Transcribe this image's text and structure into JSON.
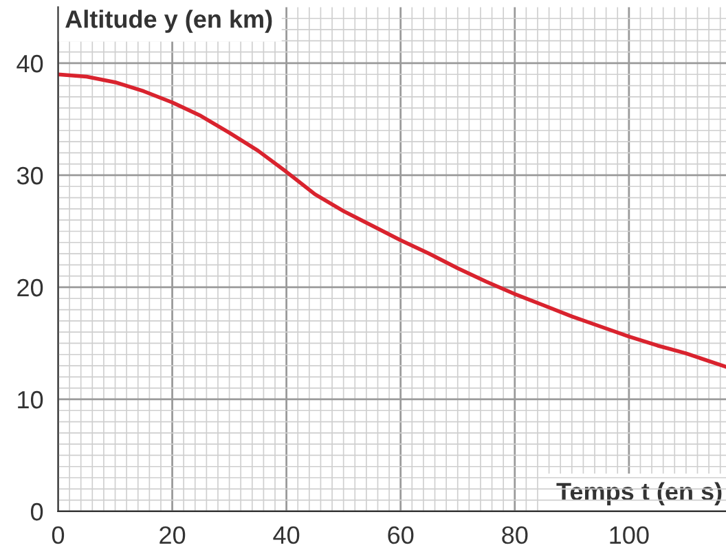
{
  "chart_data": {
    "type": "line",
    "xlabel": "Temps t (en s)",
    "ylabel": "Altitude y (en km)",
    "x": [
      0,
      5,
      10,
      15,
      20,
      25,
      30,
      35,
      40,
      45,
      50,
      55,
      60,
      65,
      70,
      75,
      80,
      85,
      90,
      95,
      100,
      105,
      110,
      117
    ],
    "series": [
      {
        "color": "#d9232e",
        "values": [
          39,
          38.8,
          38.3,
          37.5,
          36.5,
          35.3,
          33.8,
          32.2,
          30.3,
          28.3,
          26.8,
          25.5,
          24.2,
          23,
          21.7,
          20.5,
          19.4,
          18.4,
          17.4,
          16.5,
          15.6,
          14.8,
          14.1,
          12.9
        ]
      }
    ],
    "xlim": [
      0,
      117
    ],
    "ylim": [
      0,
      45
    ],
    "xticks": [
      0,
      20,
      40,
      60,
      80,
      100
    ],
    "yticks": [
      0,
      10,
      20,
      30,
      40
    ],
    "grid": true,
    "marker": "none",
    "line_style": "solid"
  }
}
